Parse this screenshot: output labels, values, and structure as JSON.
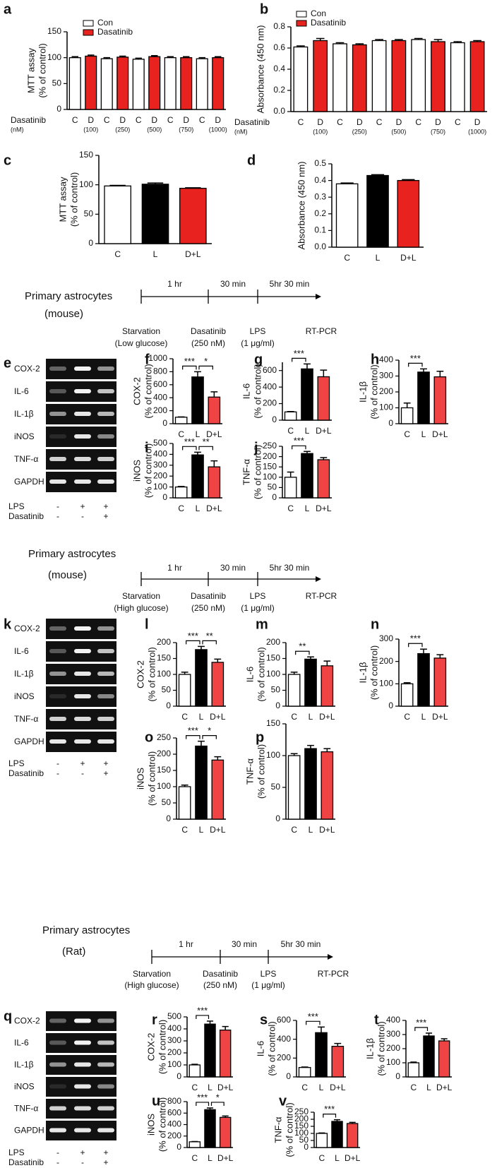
{
  "chart_data": [
    {
      "type": "bar",
      "panel": "a",
      "ylabel": [
        "MTT assay",
        "(% of control)"
      ],
      "xprefix": [
        "Dasatinib",
        "(nM)"
      ],
      "categories": [
        "C",
        "D",
        "C",
        "D",
        "C",
        "D",
        "C",
        "D",
        "C",
        "D"
      ],
      "sublabels": [
        null,
        "(100)",
        null,
        "(250)",
        null,
        "(500)",
        null,
        "(750)",
        null,
        "(1000)"
      ],
      "series": [
        {
          "name": "Con",
          "color": "#ffffff",
          "values": [
            100,
            null,
            98,
            null,
            97,
            null,
            100,
            null,
            98,
            null
          ],
          "errors": [
            2,
            null,
            2,
            null,
            2,
            null,
            2,
            null,
            2,
            null
          ]
        },
        {
          "name": "Dasatinib",
          "color": "#e8231f",
          "values": [
            null,
            103,
            null,
            101,
            null,
            102,
            null,
            100,
            null,
            100
          ],
          "errors": [
            null,
            2,
            null,
            2,
            null,
            2,
            null,
            2,
            null,
            2
          ]
        }
      ],
      "ylim": [
        0,
        150
      ],
      "yticks": [
        0,
        50,
        100,
        150
      ]
    },
    {
      "type": "bar",
      "panel": "b",
      "ylabel": [
        "Absorbance (450 nm)"
      ],
      "xprefix": [
        "Dasatinib",
        "(nM)"
      ],
      "categories": [
        "C",
        "D",
        "C",
        "D",
        "C",
        "D",
        "C",
        "D",
        "C",
        "D"
      ],
      "sublabels": [
        null,
        "(100)",
        null,
        "(250)",
        null,
        "(500)",
        null,
        "(750)",
        null,
        "(1000)"
      ],
      "series": [
        {
          "name": "Con",
          "color": "#ffffff",
          "values": [
            0.61,
            null,
            0.64,
            null,
            0.67,
            null,
            0.68,
            null,
            0.65,
            null
          ],
          "errors": [
            0.01,
            null,
            0.01,
            null,
            0.01,
            null,
            0.01,
            null,
            0.01,
            null
          ]
        },
        {
          "name": "Dasatinib",
          "color": "#e8231f",
          "values": [
            null,
            0.67,
            null,
            0.63,
            null,
            0.67,
            null,
            0.66,
            null,
            0.66
          ],
          "errors": [
            null,
            0.02,
            null,
            0.01,
            null,
            0.01,
            null,
            0.02,
            null,
            0.01
          ]
        }
      ],
      "ylim": [
        0,
        0.8
      ],
      "yticks": [
        {
          "value": 0,
          "label": "0.0"
        },
        0.2,
        0.4,
        0.6,
        0.8
      ]
    },
    {
      "type": "bar",
      "panel": "c",
      "ylabel": [
        "MTT assay",
        "(% of control)"
      ],
      "categories": [
        "C",
        "L",
        "D+L"
      ],
      "colors": [
        "#ffffff",
        "#000000",
        "#e8231f"
      ],
      "values": [
        98,
        101,
        94
      ],
      "errors": [
        1,
        2,
        1
      ],
      "ylim": [
        0,
        150
      ],
      "yticks": [
        0,
        50,
        100,
        150
      ]
    },
    {
      "type": "bar",
      "panel": "d",
      "ylabel": [
        "Absorbance (450 nm)"
      ],
      "categories": [
        "C",
        "L",
        "D+L"
      ],
      "colors": [
        "#ffffff",
        "#000000",
        "#e8231f"
      ],
      "values": [
        0.38,
        0.43,
        0.4
      ],
      "errors": [
        0.005,
        0.005,
        0.005
      ],
      "ylim": [
        0,
        0.5
      ],
      "yticks": [
        {
          "value": 0,
          "label": "0.0"
        },
        0.1,
        0.2,
        0.3,
        0.4,
        0.5
      ]
    },
    {
      "type": "bar",
      "panel": "f",
      "ylabel": [
        "COX-2",
        "(% of control)"
      ],
      "categories": [
        "C",
        "L",
        "D+L"
      ],
      "colors": [
        "#ffffff",
        "#000000",
        "#f04444"
      ],
      "values": [
        100,
        720,
        410
      ],
      "errors": [
        5,
        80,
        80
      ],
      "ylim": [
        0,
        1000
      ],
      "yticks": [
        0,
        200,
        400,
        600,
        800,
        1000
      ],
      "annotations": [
        {
          "from": 0,
          "to": 1,
          "label": "***"
        },
        {
          "from": 1,
          "to": 2,
          "label": "*"
        }
      ]
    },
    {
      "type": "bar",
      "panel": "g",
      "ylabel": [
        "IL-6",
        "(% of control)"
      ],
      "categories": [
        "C",
        "L",
        "D+L"
      ],
      "colors": [
        "#ffffff",
        "#000000",
        "#f04444"
      ],
      "values": [
        100,
        620,
        525
      ],
      "errors": [
        5,
        60,
        80
      ],
      "ylim": [
        0,
        700
      ],
      "yticks": [
        0,
        200,
        400,
        600
      ],
      "annotations": [
        {
          "from": 0,
          "to": 1,
          "label": "***"
        }
      ]
    },
    {
      "type": "bar",
      "panel": "h",
      "ylabel": [
        "IL-1β",
        "(% of control)"
      ],
      "categories": [
        "C",
        "L",
        "D+L"
      ],
      "colors": [
        "#ffffff",
        "#000000",
        "#f04444"
      ],
      "values": [
        100,
        325,
        295
      ],
      "errors": [
        30,
        20,
        35
      ],
      "ylim": [
        0,
        400
      ],
      "yticks": [
        0,
        100,
        200,
        300,
        400
      ],
      "annotations": [
        {
          "from": 0,
          "to": 1,
          "label": "***"
        }
      ]
    },
    {
      "type": "bar",
      "panel": "i",
      "ylabel": [
        "iNOS",
        "(% of control)"
      ],
      "categories": [
        "C",
        "L",
        "D+L"
      ],
      "colors": [
        "#ffffff",
        "#000000",
        "#f04444"
      ],
      "values": [
        100,
        395,
        285
      ],
      "errors": [
        5,
        25,
        55
      ],
      "ylim": [
        0,
        500
      ],
      "yticks": [
        0,
        100,
        200,
        300,
        400,
        500
      ],
      "annotations": [
        {
          "from": 0,
          "to": 1,
          "label": "***"
        },
        {
          "from": 1,
          "to": 2,
          "label": "**"
        }
      ]
    },
    {
      "type": "bar",
      "panel": "j",
      "ylabel": [
        "TNF-α",
        "(% of control)"
      ],
      "categories": [
        "C",
        "L",
        "D+L"
      ],
      "colors": [
        "#ffffff",
        "#000000",
        "#f04444"
      ],
      "values": [
        100,
        215,
        185
      ],
      "errors": [
        25,
        10,
        10
      ],
      "ylim": [
        0,
        250
      ],
      "yticks": [
        0,
        50,
        100,
        150,
        200,
        250
      ],
      "annotations": [
        {
          "from": 0,
          "to": 1,
          "label": "***"
        }
      ]
    },
    {
      "type": "bar",
      "panel": "l",
      "ylabel": [
        "COX-2",
        "(% of control)"
      ],
      "categories": [
        "C",
        "L",
        "D+L"
      ],
      "colors": [
        "#ffffff",
        "#000000",
        "#f04444"
      ],
      "values": [
        100,
        178,
        138
      ],
      "errors": [
        7,
        10,
        10
      ],
      "ylim": [
        0,
        200
      ],
      "yticks": [
        0,
        50,
        100,
        150,
        200
      ],
      "annotations": [
        {
          "from": 0,
          "to": 1,
          "label": "***"
        },
        {
          "from": 1,
          "to": 2,
          "label": "**"
        }
      ]
    },
    {
      "type": "bar",
      "panel": "m",
      "ylabel": [
        "IL-6",
        "(% of control)"
      ],
      "categories": [
        "C",
        "L",
        "D+L"
      ],
      "colors": [
        "#ffffff",
        "#000000",
        "#f04444"
      ],
      "values": [
        100,
        148,
        127
      ],
      "errors": [
        7,
        7,
        15
      ],
      "ylim": [
        0,
        200
      ],
      "yticks": [
        0,
        50,
        100,
        150,
        200
      ],
      "annotations": [
        {
          "from": 0,
          "to": 1,
          "label": "**"
        }
      ]
    },
    {
      "type": "bar",
      "panel": "n",
      "ylabel": [
        "IL-1β",
        "(% of control)"
      ],
      "categories": [
        "C",
        "L",
        "D+L"
      ],
      "colors": [
        "#ffffff",
        "#000000",
        "#f04444"
      ],
      "values": [
        100,
        235,
        215
      ],
      "errors": [
        5,
        20,
        15
      ],
      "ylim": [
        0,
        300
      ],
      "yticks": [
        0,
        100,
        200,
        300
      ],
      "annotations": [
        {
          "from": 0,
          "to": 1,
          "label": "***"
        }
      ]
    },
    {
      "type": "bar",
      "panel": "o",
      "ylabel": [
        "iNOS",
        "(% of control)"
      ],
      "categories": [
        "C",
        "L",
        "D+L"
      ],
      "colors": [
        "#ffffff",
        "#000000",
        "#f04444"
      ],
      "values": [
        100,
        225,
        182
      ],
      "errors": [
        5,
        15,
        10
      ],
      "ylim": [
        0,
        250
      ],
      "yticks": [
        0,
        50,
        100,
        150,
        200,
        250
      ],
      "annotations": [
        {
          "from": 0,
          "to": 1,
          "label": "***"
        },
        {
          "from": 1,
          "to": 2,
          "label": "*"
        }
      ]
    },
    {
      "type": "bar",
      "panel": "p",
      "ylabel": [
        "TNF-α",
        "(% of control)"
      ],
      "categories": [
        "C",
        "L",
        "D+L"
      ],
      "colors": [
        "#ffffff",
        "#000000",
        "#f04444"
      ],
      "values": [
        100,
        111,
        106
      ],
      "errors": [
        3,
        5,
        5
      ],
      "ylim": [
        0,
        150
      ],
      "yticks": [
        0,
        50,
        100,
        150
      ]
    },
    {
      "type": "bar",
      "panel": "r",
      "ylabel": [
        "COX-2",
        "(% of control)"
      ],
      "categories": [
        "C",
        "L",
        "D+L"
      ],
      "colors": [
        "#ffffff",
        "#000000",
        "#f04444"
      ],
      "values": [
        100,
        440,
        390
      ],
      "errors": [
        5,
        25,
        30
      ],
      "ylim": [
        0,
        500
      ],
      "yticks": [
        0,
        100,
        200,
        300,
        400,
        500
      ],
      "annotations": [
        {
          "from": 0,
          "to": 1,
          "label": "***"
        }
      ]
    },
    {
      "type": "bar",
      "panel": "s",
      "ylabel": [
        "IL-6",
        "(% of control)"
      ],
      "categories": [
        "C",
        "L",
        "D+L"
      ],
      "colors": [
        "#ffffff",
        "#000000",
        "#f04444"
      ],
      "values": [
        100,
        470,
        325
      ],
      "errors": [
        5,
        60,
        30
      ],
      "ylim": [
        0,
        600
      ],
      "yticks": [
        0,
        200,
        400,
        600
      ],
      "annotations": [
        {
          "from": 0,
          "to": 1,
          "label": "***"
        }
      ]
    },
    {
      "type": "bar",
      "panel": "t",
      "ylabel": [
        "IL-1β",
        "(% of control)"
      ],
      "categories": [
        "C",
        "L",
        "D+L"
      ],
      "colors": [
        "#ffffff",
        "#000000",
        "#f04444"
      ],
      "values": [
        100,
        290,
        255
      ],
      "errors": [
        5,
        20,
        15
      ],
      "ylim": [
        0,
        400
      ],
      "yticks": [
        0,
        100,
        200,
        300,
        400
      ],
      "annotations": [
        {
          "from": 0,
          "to": 1,
          "label": "***"
        }
      ]
    },
    {
      "type": "bar",
      "panel": "u",
      "ylabel": [
        "iNOS",
        "(% of control)"
      ],
      "categories": [
        "C",
        "L",
        "D+L"
      ],
      "colors": [
        "#ffffff",
        "#000000",
        "#f04444"
      ],
      "values": [
        100,
        660,
        525
      ],
      "errors": [
        5,
        30,
        25
      ],
      "ylim": [
        0,
        800
      ],
      "yticks": [
        0,
        200,
        400,
        600,
        800
      ],
      "annotations": [
        {
          "from": 0,
          "to": 1,
          "label": "***"
        },
        {
          "from": 1,
          "to": 2,
          "label": "*"
        }
      ]
    },
    {
      "type": "bar",
      "panel": "v",
      "ylabel": [
        "TNF-α",
        "(% of control)"
      ],
      "categories": [
        "C",
        "L",
        "D+L"
      ],
      "colors": [
        "#ffffff",
        "#000000",
        "#f04444"
      ],
      "values": [
        100,
        185,
        170
      ],
      "errors": [
        3,
        12,
        8
      ],
      "ylim": [
        0,
        250
      ],
      "yticks": [
        0,
        50,
        100,
        150,
        200,
        250
      ],
      "annotations": [
        {
          "from": 0,
          "to": 1,
          "label": "***"
        }
      ]
    }
  ],
  "timelines": [
    {
      "title": [
        "Primary astrocytes",
        "(mouse)"
      ],
      "durations": [
        "1 hr",
        "30 min",
        "5hr 30 min"
      ],
      "steps": [
        [
          "Starvation",
          "(Low glucose)"
        ],
        [
          "Dasatinib",
          "(250 nM)"
        ],
        [
          "LPS",
          "(1 μg/ml)"
        ],
        [
          "RT-PCR"
        ]
      ]
    },
    {
      "title": [
        "Primary astrocytes",
        "(mouse)"
      ],
      "durations": [
        "1 hr",
        "30 min",
        "5hr 30 min"
      ],
      "steps": [
        [
          "Starvation",
          "(High glucose)"
        ],
        [
          "Dasatinib",
          "(250 nM)"
        ],
        [
          "LPS",
          "(1 μg/ml)"
        ],
        [
          "RT-PCR"
        ]
      ]
    },
    {
      "title": [
        "Primary astrocytes",
        "(Rat)"
      ],
      "durations": [
        "1 hr",
        "30 min",
        "5hr 30 min"
      ],
      "steps": [
        [
          "Starvation",
          "(High glucose)"
        ],
        [
          "Dasatinib",
          "(250 nM)"
        ],
        [
          "LPS",
          "(1 μg/ml)"
        ],
        [
          "RT-PCR"
        ]
      ]
    }
  ],
  "gels": [
    {
      "panel": "e",
      "rows": [
        "COX-2",
        "IL-6",
        "IL-1β",
        "iNOS",
        "TNF-α",
        "GAPDH"
      ],
      "conditions": [
        {
          "name": "LPS",
          "marks": [
            "-",
            "+",
            "+"
          ]
        },
        {
          "name": "Dasatinib",
          "marks": [
            "-",
            "-",
            "+"
          ]
        }
      ]
    },
    {
      "panel": "k",
      "rows": [
        "COX-2",
        "IL-6",
        "IL-1β",
        "iNOS",
        "TNF-α",
        "GAPDH"
      ],
      "conditions": [
        {
          "name": "LPS",
          "marks": [
            "-",
            "+",
            "+"
          ]
        },
        {
          "name": "Dasatinib",
          "marks": [
            "-",
            "-",
            "+"
          ]
        }
      ]
    },
    {
      "panel": "q",
      "rows": [
        "COX-2",
        "IL-6",
        "IL-1β",
        "iNOS",
        "TNF-α",
        "GAPDH"
      ],
      "conditions": [
        {
          "name": "LPS",
          "marks": [
            "-",
            "+",
            "+"
          ]
        },
        {
          "name": "Dasatinib",
          "marks": [
            "-",
            "-",
            "+"
          ]
        }
      ]
    }
  ]
}
